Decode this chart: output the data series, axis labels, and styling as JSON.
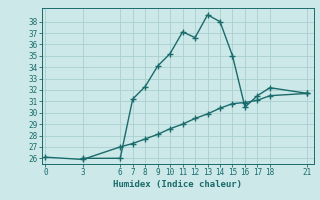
{
  "xlabel": "Humidex (Indice chaleur)",
  "ylabel": "",
  "bg_color": "#cce8e8",
  "grid_color": "#aacfcf",
  "line_color": "#1a6b6b",
  "ylim": [
    25.5,
    39.2
  ],
  "yticks": [
    26,
    27,
    28,
    29,
    30,
    31,
    32,
    33,
    34,
    35,
    36,
    37,
    38
  ],
  "xticks": [
    0,
    3,
    6,
    7,
    8,
    9,
    10,
    11,
    12,
    13,
    14,
    15,
    16,
    17,
    18,
    21
  ],
  "xlim": [
    -0.3,
    21.5
  ],
  "curve1_x": [
    3,
    6,
    7,
    8,
    9,
    10,
    11,
    12,
    13,
    14,
    15,
    16,
    17,
    18,
    21
  ],
  "curve1_y": [
    26,
    26,
    31.2,
    32.3,
    34.1,
    35.2,
    37.1,
    36.6,
    38.6,
    38.0,
    35.0,
    30.5,
    31.5,
    32.2,
    31.7
  ],
  "curve2_x": [
    0,
    3,
    6,
    7,
    8,
    9,
    10,
    11,
    12,
    13,
    14,
    15,
    16,
    17,
    18,
    21
  ],
  "curve2_y": [
    26.1,
    25.9,
    27.0,
    27.3,
    27.7,
    28.1,
    28.6,
    29.0,
    29.5,
    29.9,
    30.4,
    30.8,
    30.9,
    31.1,
    31.5,
    31.7
  ]
}
